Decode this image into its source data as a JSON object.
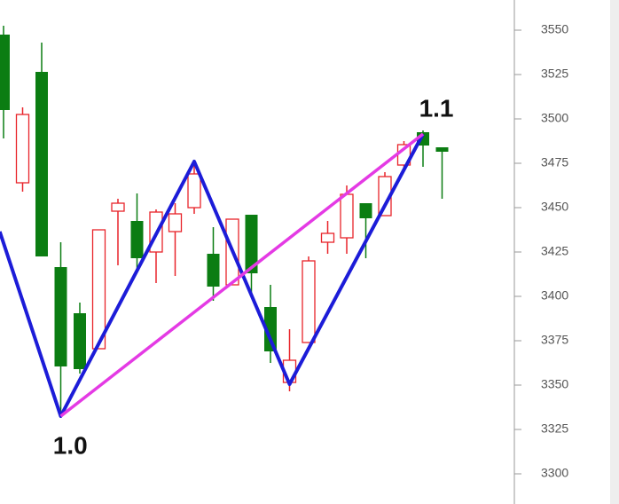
{
  "chart_data": {
    "type": "candlestick",
    "open": [
      3547.5,
      3464,
      3526.5,
      3416.5,
      3390.5,
      3370.5,
      3448,
      3442.5,
      3425,
      3436.5,
      3450,
      3424,
      3406.5,
      3446,
      3394,
      3351.5,
      3374,
      3430.5,
      3433,
      3452.5,
      3445.5,
      3474,
      3492.5,
      3484
    ],
    "high": [
      3552.5,
      3506.5,
      3543,
      3430.5,
      3396.5,
      3437.5,
      3455,
      3458,
      3449,
      3452.5,
      3476.5,
      3439,
      3443.5,
      3446,
      3406.5,
      3381.5,
      3422.5,
      3442.5,
      3462.5,
      3452.5,
      3470,
      3487.5,
      3493.5,
      3484
    ],
    "low": [
      3489,
      3459,
      3422.5,
      3331.5,
      3356.5,
      3370.5,
      3417.5,
      3415.5,
      3407.5,
      3411.5,
      3446.5,
      3397.5,
      3406.5,
      3401.5,
      3362.5,
      3346.5,
      3374,
      3424,
      3424,
      3421.5,
      3445.5,
      3472.5,
      3473,
      3455
    ],
    "close": [
      3505,
      3502.5,
      3422.5,
      3360.5,
      3359,
      3437.5,
      3452.5,
      3421.5,
      3447.5,
      3446.5,
      3469,
      3405.5,
      3443.5,
      3413,
      3369,
      3364,
      3420,
      3435.5,
      3457.5,
      3444,
      3467.5,
      3485.5,
      3485,
      3481.5
    ],
    "up_color": "#e8242a",
    "down_color": "#0b7d12",
    "lines": [
      {
        "color": "#1c1cd8",
        "x": [
          -0.2,
          3,
          10,
          15,
          22
        ],
        "y": [
          3436.5,
          3332.5,
          3476,
          3350.5,
          3491.5
        ]
      },
      {
        "color": "#e43ae4",
        "x": [
          3,
          22
        ],
        "y": [
          3332.5,
          3491.5
        ]
      }
    ],
    "annotations": [
      {
        "text": "1.0",
        "x": 3.5,
        "y": 3315
      },
      {
        "text": "1.1",
        "x": 22.7,
        "y": 3505
      }
    ],
    "ylim": [
      3283,
      3567
    ],
    "yticks": [
      3300,
      3325,
      3350,
      3375,
      3400,
      3425,
      3450,
      3475,
      3500,
      3525,
      3550
    ]
  }
}
